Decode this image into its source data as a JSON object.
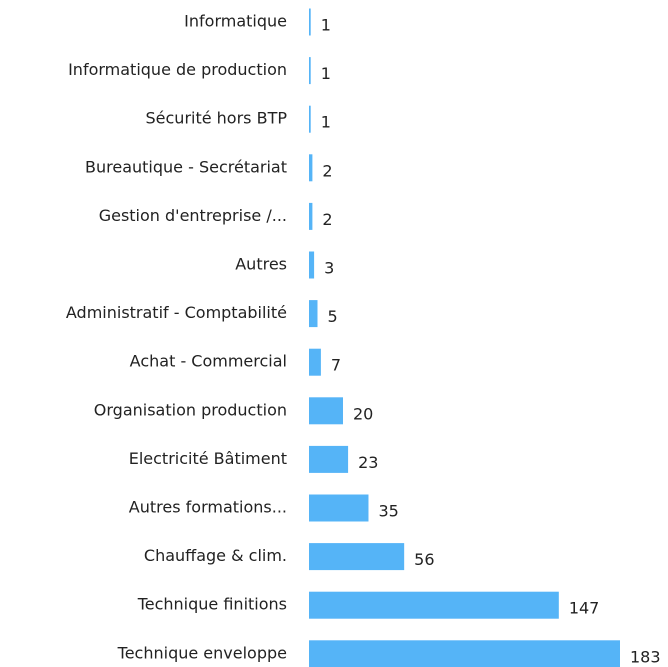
{
  "chart_data": {
    "type": "barh",
    "categories": [
      "Informatique",
      "Informatique de production",
      "Sécurité hors BTP",
      "Bureautique - Secrétariat",
      "Gestion d'entreprise /...",
      "Autres",
      "Administratif - Comptabilité",
      "Achat - Commercial",
      "Organisation production",
      "Electricité Bâtiment",
      "Autres formations...",
      "Chauffage & clim.",
      "Technique finitions",
      "Technique enveloppe"
    ],
    "values": [
      1,
      1,
      1,
      2,
      2,
      3,
      5,
      7,
      20,
      23,
      35,
      56,
      147,
      183
    ],
    "color": "#55b4f7"
  }
}
